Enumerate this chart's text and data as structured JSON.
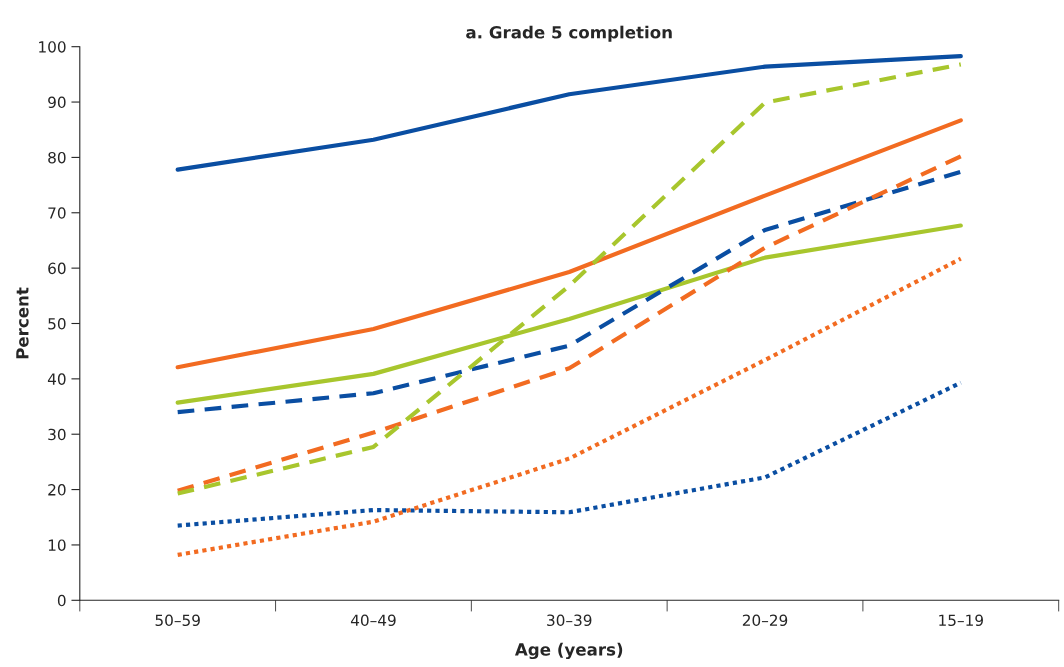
{
  "chart_data": {
    "type": "line",
    "title": "a. Grade 5 completion",
    "xlabel": "Age (years)",
    "ylabel": "Percent",
    "categories": [
      "50–59",
      "40–49",
      "30–39",
      "20–29",
      "15–19"
    ],
    "ylim": [
      0,
      100
    ],
    "yticks": [
      0,
      10,
      20,
      30,
      40,
      50,
      60,
      70,
      80,
      90,
      100
    ],
    "grid": false,
    "legend": false,
    "marker": "none",
    "series": [
      {
        "color": "#0a4ea2",
        "line_style": "solid",
        "values": [
          77.8,
          83.2,
          91.4,
          96.4,
          98.3
        ]
      },
      {
        "color": "#f26b21",
        "line_style": "solid",
        "values": [
          42.1,
          49.0,
          59.3,
          73.1,
          86.7
        ]
      },
      {
        "color": "#a8c62d",
        "line_style": "solid",
        "values": [
          35.7,
          40.9,
          50.8,
          61.9,
          67.7
        ]
      },
      {
        "color": "#0a4ea2",
        "line_style": "dashed",
        "values": [
          34.0,
          37.4,
          46.0,
          66.9,
          77.4
        ]
      },
      {
        "color": "#f26b21",
        "line_style": "dashed",
        "values": [
          19.8,
          30.3,
          41.9,
          63.7,
          80.2
        ]
      },
      {
        "color": "#a8c62d",
        "line_style": "dashed",
        "values": [
          19.3,
          27.7,
          56.8,
          89.9,
          96.8
        ]
      },
      {
        "color": "#0a4ea2",
        "line_style": "dotted",
        "values": [
          13.5,
          16.3,
          15.9,
          22.2,
          39.3
        ]
      },
      {
        "color": "#f26b21",
        "line_style": "dotted",
        "values": [
          8.2,
          14.2,
          25.6,
          43.4,
          61.7
        ]
      }
    ]
  }
}
